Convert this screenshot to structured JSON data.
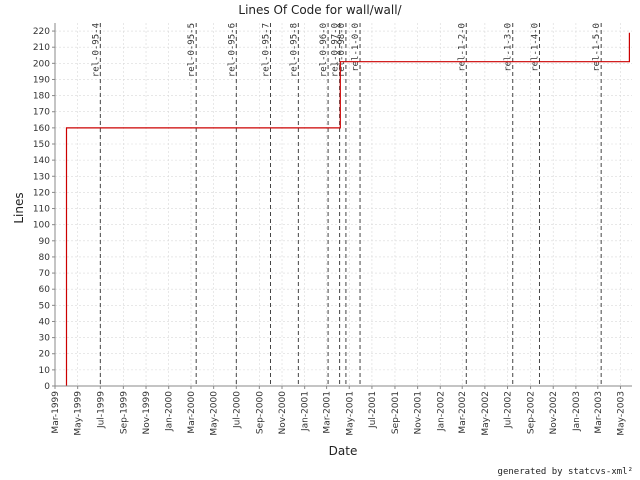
{
  "chart_data": {
    "type": "line",
    "title": "Lines Of Code for wall/wall/",
    "xlabel": "Date",
    "ylabel": "Lines",
    "footer": "generated by statcvs-xml²",
    "grid": true,
    "xlim": [
      "1999-03-01",
      "2003-06-01"
    ],
    "ylim": [
      0,
      225
    ],
    "yticks": [
      0,
      10,
      20,
      30,
      40,
      50,
      60,
      70,
      80,
      90,
      100,
      110,
      120,
      130,
      140,
      150,
      160,
      170,
      180,
      190,
      200,
      210,
      220
    ],
    "xticks": [
      {
        "date": "1999-03-01",
        "label": "Mar-1999"
      },
      {
        "date": "1999-05-01",
        "label": "May-1999"
      },
      {
        "date": "1999-07-01",
        "label": "Jul-1999"
      },
      {
        "date": "1999-09-01",
        "label": "Sep-1999"
      },
      {
        "date": "1999-11-01",
        "label": "Nov-1999"
      },
      {
        "date": "2000-01-01",
        "label": "Jan-2000"
      },
      {
        "date": "2000-03-01",
        "label": "Mar-2000"
      },
      {
        "date": "2000-05-01",
        "label": "May-2000"
      },
      {
        "date": "2000-07-01",
        "label": "Jul-2000"
      },
      {
        "date": "2000-09-01",
        "label": "Sep-2000"
      },
      {
        "date": "2000-11-01",
        "label": "Nov-2000"
      },
      {
        "date": "2001-01-01",
        "label": "Jan-2001"
      },
      {
        "date": "2001-03-01",
        "label": "Mar-2001"
      },
      {
        "date": "2001-05-01",
        "label": "May-2001"
      },
      {
        "date": "2001-07-01",
        "label": "Jul-2001"
      },
      {
        "date": "2001-09-01",
        "label": "Sep-2001"
      },
      {
        "date": "2001-11-01",
        "label": "Nov-2001"
      },
      {
        "date": "2002-01-01",
        "label": "Jan-2002"
      },
      {
        "date": "2002-03-01",
        "label": "Mar-2002"
      },
      {
        "date": "2002-05-01",
        "label": "May-2002"
      },
      {
        "date": "2002-07-01",
        "label": "Jul-2002"
      },
      {
        "date": "2002-09-01",
        "label": "Sep-2002"
      },
      {
        "date": "2002-11-01",
        "label": "Nov-2002"
      },
      {
        "date": "2003-01-01",
        "label": "Jan-2003"
      },
      {
        "date": "2003-03-01",
        "label": "Mar-2003"
      },
      {
        "date": "2003-05-01",
        "label": "May-2003"
      }
    ],
    "series": [
      {
        "color": "#cc0000",
        "step": true,
        "points": [
          {
            "x": "1999-04-01",
            "y": 0
          },
          {
            "x": "1999-04-01",
            "y": 160
          },
          {
            "x": "2001-04-07",
            "y": 160
          },
          {
            "x": "2001-04-07",
            "y": 201
          },
          {
            "x": "2003-05-25",
            "y": 201
          },
          {
            "x": "2003-05-25",
            "y": 219
          }
        ]
      }
    ],
    "release_markers": [
      {
        "date": "1999-07-01",
        "label": "rel-0-95-4"
      },
      {
        "date": "2000-03-15",
        "label": "rel-0-95-5"
      },
      {
        "date": "2000-07-01",
        "label": "rel-0-95-6"
      },
      {
        "date": "2000-10-01",
        "label": "rel-0-95-7"
      },
      {
        "date": "2000-12-15",
        "label": "rel-0-95-8"
      },
      {
        "date": "2001-03-05",
        "label": "rel-0-96-0"
      },
      {
        "date": "2001-04-05",
        "label": "rel-0-97-0"
      },
      {
        "date": "2001-04-22",
        "label": "rel-0-98-0"
      },
      {
        "date": "2001-05-30",
        "label": "rel-1-0-0"
      },
      {
        "date": "2002-03-12",
        "label": "rel-1-2-0"
      },
      {
        "date": "2002-07-15",
        "label": "rel-1-3-0"
      },
      {
        "date": "2002-09-25",
        "label": "rel-1-4-0"
      },
      {
        "date": "2003-03-10",
        "label": "rel-1-5-0"
      }
    ],
    "colors": {
      "line": "#cc0000",
      "marker": "#444444",
      "grid": "#d9d9d9",
      "axis": "#888888"
    }
  }
}
